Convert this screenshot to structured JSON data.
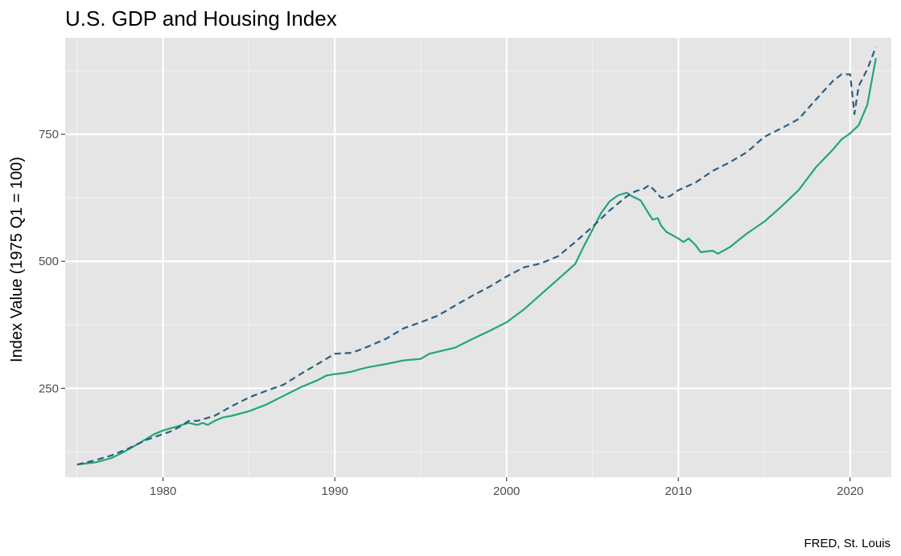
{
  "chart_data": {
    "type": "line",
    "title": "U.S. GDP and Housing Index",
    "xlabel": "",
    "ylabel": "Index Value (1975 Q1 = 100)",
    "caption": "FRED, St. Louis",
    "xlim": [
      1974.3,
      2022.4
    ],
    "ylim": [
      75,
      940
    ],
    "x_ticks": [
      1980,
      1990,
      2000,
      2010,
      2020
    ],
    "x_tick_labels": [
      "1980",
      "1990",
      "2000",
      "2010",
      "2020"
    ],
    "y_ticks": [
      250,
      500,
      750
    ],
    "y_tick_labels": [
      "250",
      "500",
      "750"
    ],
    "grid": true,
    "legend": "none",
    "colors": {
      "panel": "#e5e5e5",
      "grid_major": "#ffffff",
      "grid_minor": "#f2f2f2"
    },
    "series": [
      {
        "color": "#21a67a",
        "dash": "solid",
        "points": [
          [
            1975.0,
            100
          ],
          [
            1975.5,
            102
          ],
          [
            1976.0,
            104
          ],
          [
            1976.5,
            108
          ],
          [
            1977.0,
            113
          ],
          [
            1977.5,
            121
          ],
          [
            1978.0,
            130
          ],
          [
            1978.5,
            140
          ],
          [
            1979.0,
            150
          ],
          [
            1979.5,
            160
          ],
          [
            1980.0,
            167
          ],
          [
            1980.5,
            172
          ],
          [
            1981.0,
            177
          ],
          [
            1981.5,
            182
          ],
          [
            1982.0,
            178
          ],
          [
            1982.3,
            182
          ],
          [
            1982.6,
            178
          ],
          [
            1983.0,
            186
          ],
          [
            1983.5,
            193
          ],
          [
            1984.0,
            196
          ],
          [
            1985.0,
            205
          ],
          [
            1986.0,
            218
          ],
          [
            1987.0,
            235
          ],
          [
            1988.0,
            252
          ],
          [
            1989.0,
            266
          ],
          [
            1989.5,
            275
          ],
          [
            1990.0,
            278
          ],
          [
            1990.5,
            280
          ],
          [
            1991.0,
            283
          ],
          [
            1991.5,
            288
          ],
          [
            1992.0,
            292
          ],
          [
            1993.0,
            298
          ],
          [
            1994.0,
            305
          ],
          [
            1995.0,
            308
          ],
          [
            1995.5,
            318
          ],
          [
            1996.0,
            322
          ],
          [
            1997.0,
            330
          ],
          [
            1998.0,
            347
          ],
          [
            1999.0,
            363
          ],
          [
            2000.0,
            380
          ],
          [
            2001.0,
            405
          ],
          [
            2002.0,
            435
          ],
          [
            2003.0,
            465
          ],
          [
            2004.0,
            495
          ],
          [
            2004.5,
            530
          ],
          [
            2005.0,
            562
          ],
          [
            2005.5,
            595
          ],
          [
            2006.0,
            618
          ],
          [
            2006.5,
            630
          ],
          [
            2007.0,
            635
          ],
          [
            2007.3,
            628
          ],
          [
            2007.8,
            620
          ],
          [
            2008.2,
            598
          ],
          [
            2008.5,
            582
          ],
          [
            2008.8,
            585
          ],
          [
            2009.0,
            570
          ],
          [
            2009.3,
            558
          ],
          [
            2010.0,
            545
          ],
          [
            2010.3,
            538
          ],
          [
            2010.6,
            545
          ],
          [
            2011.0,
            532
          ],
          [
            2011.3,
            518
          ],
          [
            2012.0,
            521
          ],
          [
            2012.3,
            515
          ],
          [
            2013.0,
            528
          ],
          [
            2014.0,
            555
          ],
          [
            2015.0,
            578
          ],
          [
            2016.0,
            608
          ],
          [
            2017.0,
            640
          ],
          [
            2018.0,
            685
          ],
          [
            2019.0,
            720
          ],
          [
            2019.5,
            740
          ],
          [
            2020.0,
            752
          ],
          [
            2020.5,
            768
          ],
          [
            2021.0,
            808
          ],
          [
            2021.5,
            900
          ]
        ]
      },
      {
        "color": "#2b5f80",
        "dash": "dashed",
        "points": [
          [
            1975.0,
            100
          ],
          [
            1976.0,
            108
          ],
          [
            1977.0,
            118
          ],
          [
            1978.0,
            132
          ],
          [
            1979.0,
            148
          ],
          [
            1980.0,
            160
          ],
          [
            1980.5,
            166
          ],
          [
            1981.0,
            175
          ],
          [
            1981.5,
            186
          ],
          [
            1982.0,
            186
          ],
          [
            1983.0,
            196
          ],
          [
            1984.0,
            215
          ],
          [
            1985.0,
            232
          ],
          [
            1986.0,
            245
          ],
          [
            1987.0,
            257
          ],
          [
            1988.0,
            278
          ],
          [
            1989.0,
            298
          ],
          [
            1990.0,
            318
          ],
          [
            1991.0,
            320
          ],
          [
            1992.0,
            333
          ],
          [
            1993.0,
            348
          ],
          [
            1994.0,
            368
          ],
          [
            1995.0,
            380
          ],
          [
            1996.0,
            393
          ],
          [
            1997.0,
            413
          ],
          [
            1998.0,
            432
          ],
          [
            1999.0,
            450
          ],
          [
            2000.0,
            470
          ],
          [
            2001.0,
            488
          ],
          [
            2002.0,
            496
          ],
          [
            2003.0,
            510
          ],
          [
            2004.0,
            538
          ],
          [
            2005.0,
            568
          ],
          [
            2006.0,
            600
          ],
          [
            2007.0,
            628
          ],
          [
            2007.5,
            638
          ],
          [
            2008.0,
            643
          ],
          [
            2008.3,
            650
          ],
          [
            2008.6,
            640
          ],
          [
            2009.0,
            625
          ],
          [
            2009.5,
            628
          ],
          [
            2010.0,
            640
          ],
          [
            2011.0,
            655
          ],
          [
            2012.0,
            678
          ],
          [
            2013.0,
            695
          ],
          [
            2014.0,
            715
          ],
          [
            2015.0,
            745
          ],
          [
            2016.0,
            762
          ],
          [
            2017.0,
            780
          ],
          [
            2018.0,
            818
          ],
          [
            2019.0,
            855
          ],
          [
            2019.5,
            868
          ],
          [
            2020.0,
            868
          ],
          [
            2020.25,
            790
          ],
          [
            2020.5,
            845
          ],
          [
            2021.0,
            878
          ],
          [
            2021.5,
            922
          ]
        ]
      }
    ]
  }
}
